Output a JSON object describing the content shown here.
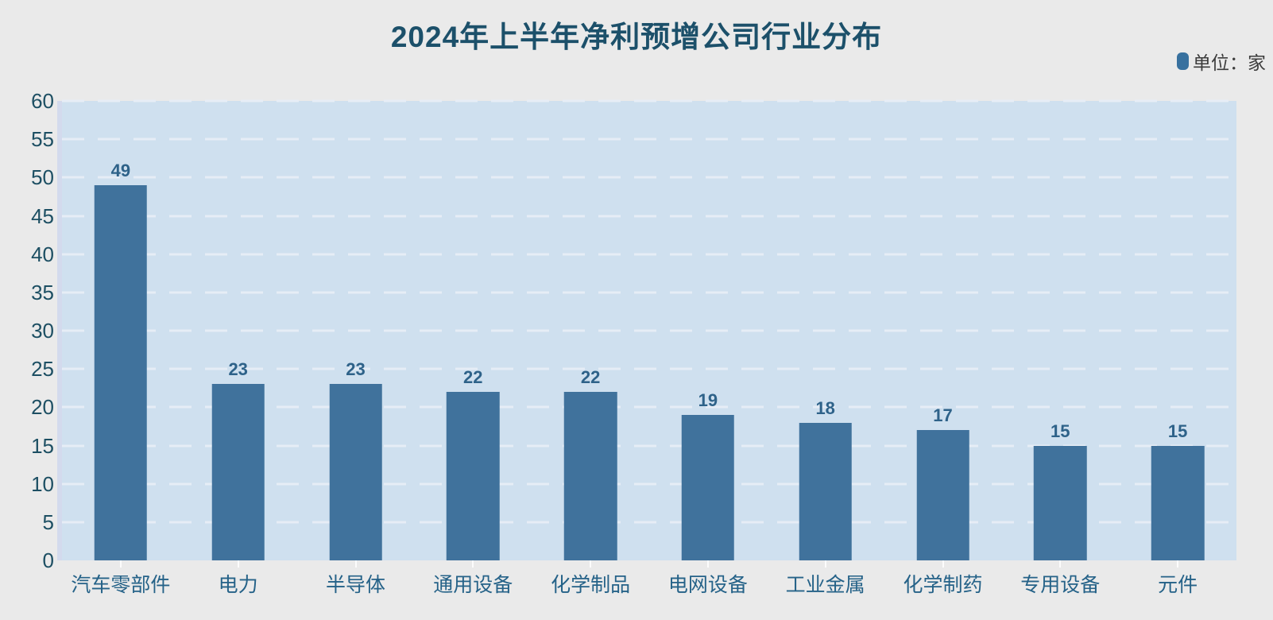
{
  "header": {
    "title": "2024年上半年净利预增公司行业分布"
  },
  "legend": {
    "label": "单位：家",
    "marker_color": "#38719f"
  },
  "chart_data": {
    "type": "bar",
    "title": "2024年上半年净利预增公司行业分布",
    "categories": [
      "汽车零部件",
      "电力",
      "半导体",
      "通用设备",
      "化学制品",
      "电网设备",
      "工业金属",
      "化学制药",
      "专用设备",
      "元件"
    ],
    "values": [
      49,
      23,
      23,
      22,
      22,
      19,
      18,
      17,
      15,
      15
    ],
    "unit_label": "单位：家",
    "xlabel": "",
    "ylabel": "",
    "ylim": [
      0,
      60
    ],
    "yticks": [
      0,
      5,
      10,
      15,
      20,
      25,
      30,
      35,
      40,
      45,
      50,
      55,
      60
    ],
    "grid": "horizontal-dashed",
    "legend_position": "top-right",
    "colors": {
      "bar": "#40729c",
      "plot_background": "#cfe0ef",
      "page_background": "#eaeaea",
      "gridline": "#e6edf6",
      "title_text": "#1c506a",
      "y_tick_text": "#1d4f63",
      "x_label_text": "#256288",
      "value_label_text": "#2e6289",
      "axis_line": "#d3daed"
    }
  }
}
